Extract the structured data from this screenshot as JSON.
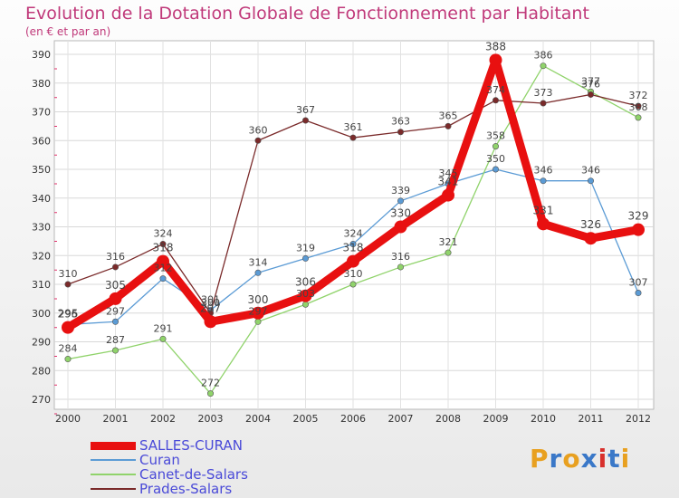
{
  "chart_data": {
    "type": "line",
    "title": "Evolution de la Dotation Globale de Fonctionnement par Habitant",
    "subtitle": "(en € et par an)",
    "xlabel": "",
    "ylabel": "",
    "x": [
      "2000",
      "2001",
      "2002",
      "2003",
      "2004",
      "2005",
      "2006",
      "2007",
      "2008",
      "2009",
      "2010",
      "2011",
      "2012"
    ],
    "ylim": [
      270,
      390
    ],
    "yticks": [
      270,
      280,
      290,
      300,
      310,
      320,
      330,
      340,
      350,
      360,
      370,
      380,
      390
    ],
    "grid": true,
    "legend_position": "bottom-left",
    "series": [
      {
        "name": "SALLES-CURAN",
        "color": "#e81010",
        "values": [
          295,
          305,
          318,
          297,
          300,
          306,
          318,
          330,
          341,
          388,
          331,
          326,
          329
        ]
      },
      {
        "name": "Curan",
        "color": "#5b9bd5",
        "values": [
          296,
          297,
          312,
          301,
          314,
          319,
          324,
          339,
          345,
          350,
          346,
          346,
          307
        ]
      },
      {
        "name": "Canet-de-Salars",
        "color": "#90d36b",
        "values": [
          284,
          287,
          291,
          272,
          297,
          303,
          310,
          316,
          321,
          358,
          386,
          377,
          368
        ]
      },
      {
        "name": "Prades-Salars",
        "color": "#7a2a2a",
        "values": [
          310,
          316,
          324,
          300,
          360,
          367,
          361,
          363,
          365,
          374,
          373,
          376,
          372
        ]
      }
    ]
  },
  "logo": {
    "text": "Proxiti",
    "letters": [
      {
        "ch": "P",
        "color": "#e8a020"
      },
      {
        "ch": "r",
        "color": "#3a78c8"
      },
      {
        "ch": "o",
        "color": "#e8a020"
      },
      {
        "ch": "x",
        "color": "#3a78c8"
      },
      {
        "ch": "i",
        "color": "#d8302c"
      },
      {
        "ch": "t",
        "color": "#3a78c8"
      },
      {
        "ch": "i",
        "color": "#e8a020"
      }
    ]
  }
}
